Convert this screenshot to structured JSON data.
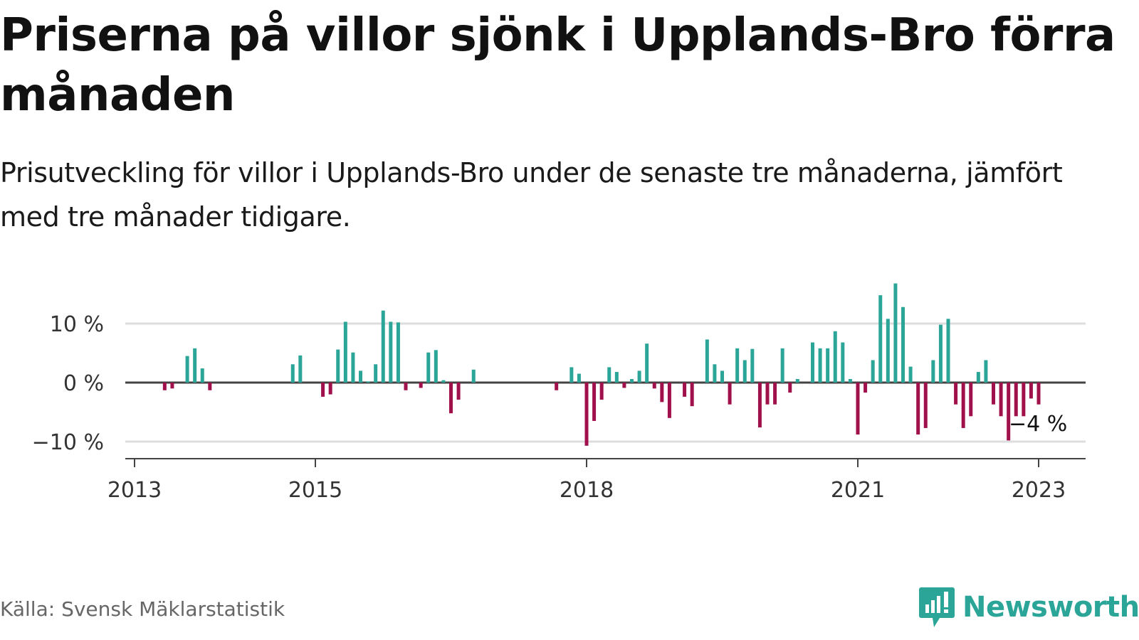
{
  "title": "Priserna på villor sjönk i Upplands-Bro förra månaden",
  "subtitle": "Prisutveckling för villor i Upplands-Bro under de senaste tre månaderna, jämfört med tre månader tidigare.",
  "source": "Källa: Svensk Mäklarstatistik",
  "logo": {
    "text": "Newsworthy",
    "icon": "newsworthy-bar-chart-icon"
  },
  "colors": {
    "positive": "#2aa598",
    "negative": "#a0104b",
    "axis": "#444444",
    "grid": "#dddddd",
    "brand": "#2aa598"
  },
  "chart_data": {
    "type": "bar",
    "title": "Priserna på villor sjönk i Upplands-Bro förra månaden",
    "ylim": [
      -12,
      17
    ],
    "yticks": [
      {
        "value": 10,
        "label": "10 %"
      },
      {
        "value": 0,
        "label": "0 %"
      },
      {
        "value": -10,
        "label": "−10 %"
      }
    ],
    "xticks": [
      {
        "date": "2013-01",
        "label": "2013"
      },
      {
        "date": "2015-01",
        "label": "2015"
      },
      {
        "date": "2018-01",
        "label": "2018"
      },
      {
        "date": "2021-01",
        "label": "2021"
      },
      {
        "date": "2023-01",
        "label": "2023"
      }
    ],
    "grid": true,
    "end_label": "−4 %",
    "series": [
      {
        "values": [
          {
            "date": "2013-05",
            "value": -1.3
          },
          {
            "date": "2013-06",
            "value": -1.0
          },
          {
            "date": "2013-08",
            "value": 4.5
          },
          {
            "date": "2013-09",
            "value": 5.8
          },
          {
            "date": "2013-10",
            "value": 2.4
          },
          {
            "date": "2013-11",
            "value": -1.3
          },
          {
            "date": "2014-10",
            "value": 3.1
          },
          {
            "date": "2014-11",
            "value": 4.6
          },
          {
            "date": "2015-02",
            "value": -2.4
          },
          {
            "date": "2015-03",
            "value": -2.0
          },
          {
            "date": "2015-04",
            "value": 5.6
          },
          {
            "date": "2015-05",
            "value": 10.3
          },
          {
            "date": "2015-06",
            "value": 5.1
          },
          {
            "date": "2015-07",
            "value": 2.0
          },
          {
            "date": "2015-08",
            "value": 0.2
          },
          {
            "date": "2015-09",
            "value": 3.1
          },
          {
            "date": "2015-10",
            "value": 12.2
          },
          {
            "date": "2015-11",
            "value": 10.3
          },
          {
            "date": "2015-12",
            "value": 10.2
          },
          {
            "date": "2016-01",
            "value": -1.3
          },
          {
            "date": "2016-03",
            "value": -0.9
          },
          {
            "date": "2016-04",
            "value": 5.1
          },
          {
            "date": "2016-05",
            "value": 5.5
          },
          {
            "date": "2016-06",
            "value": 0.4
          },
          {
            "date": "2016-07",
            "value": -5.2
          },
          {
            "date": "2016-08",
            "value": -2.9
          },
          {
            "date": "2016-10",
            "value": 2.2
          },
          {
            "date": "2017-09",
            "value": -1.3
          },
          {
            "date": "2017-11",
            "value": 2.6
          },
          {
            "date": "2017-12",
            "value": 1.5
          },
          {
            "date": "2018-01",
            "value": -10.7
          },
          {
            "date": "2018-02",
            "value": -6.5
          },
          {
            "date": "2018-03",
            "value": -2.9
          },
          {
            "date": "2018-04",
            "value": 2.6
          },
          {
            "date": "2018-05",
            "value": 1.8
          },
          {
            "date": "2018-06",
            "value": -0.9
          },
          {
            "date": "2018-07",
            "value": 0.6
          },
          {
            "date": "2018-08",
            "value": 2.0
          },
          {
            "date": "2018-09",
            "value": 6.6
          },
          {
            "date": "2018-10",
            "value": -1.0
          },
          {
            "date": "2018-11",
            "value": -3.3
          },
          {
            "date": "2018-12",
            "value": -6.0
          },
          {
            "date": "2019-02",
            "value": -2.4
          },
          {
            "date": "2019-03",
            "value": -4.0
          },
          {
            "date": "2019-05",
            "value": 7.3
          },
          {
            "date": "2019-06",
            "value": 3.1
          },
          {
            "date": "2019-07",
            "value": 2.0
          },
          {
            "date": "2019-08",
            "value": -3.7
          },
          {
            "date": "2019-09",
            "value": 5.8
          },
          {
            "date": "2019-10",
            "value": 3.8
          },
          {
            "date": "2019-11",
            "value": 5.7
          },
          {
            "date": "2019-12",
            "value": -7.6
          },
          {
            "date": "2020-01",
            "value": -3.7
          },
          {
            "date": "2020-02",
            "value": -3.7
          },
          {
            "date": "2020-03",
            "value": 5.8
          },
          {
            "date": "2020-04",
            "value": -1.7
          },
          {
            "date": "2020-05",
            "value": 0.6
          },
          {
            "date": "2020-07",
            "value": 6.8
          },
          {
            "date": "2020-08",
            "value": 5.8
          },
          {
            "date": "2020-09",
            "value": 5.8
          },
          {
            "date": "2020-10",
            "value": 8.7
          },
          {
            "date": "2020-11",
            "value": 6.8
          },
          {
            "date": "2020-12",
            "value": 0.6
          },
          {
            "date": "2021-01",
            "value": -8.8
          },
          {
            "date": "2021-02",
            "value": -1.7
          },
          {
            "date": "2021-03",
            "value": 3.8
          },
          {
            "date": "2021-04",
            "value": 14.8
          },
          {
            "date": "2021-05",
            "value": 10.8
          },
          {
            "date": "2021-06",
            "value": 16.8
          },
          {
            "date": "2021-07",
            "value": 12.8
          },
          {
            "date": "2021-08",
            "value": 2.7
          },
          {
            "date": "2021-09",
            "value": -8.8
          },
          {
            "date": "2021-10",
            "value": -7.7
          },
          {
            "date": "2021-11",
            "value": 3.8
          },
          {
            "date": "2021-12",
            "value": 9.8
          },
          {
            "date": "2022-01",
            "value": 10.8
          },
          {
            "date": "2022-02",
            "value": -3.7
          },
          {
            "date": "2022-03",
            "value": -7.7
          },
          {
            "date": "2022-04",
            "value": -5.7
          },
          {
            "date": "2022-05",
            "value": 1.8
          },
          {
            "date": "2022-06",
            "value": 3.8
          },
          {
            "date": "2022-07",
            "value": -3.7
          },
          {
            "date": "2022-08",
            "value": -5.7
          },
          {
            "date": "2022-09",
            "value": -9.8
          },
          {
            "date": "2022-10",
            "value": -5.7
          },
          {
            "date": "2022-11",
            "value": -5.7
          },
          {
            "date": "2022-12",
            "value": -2.7
          },
          {
            "date": "2023-01",
            "value": -3.7
          }
        ]
      }
    ]
  }
}
